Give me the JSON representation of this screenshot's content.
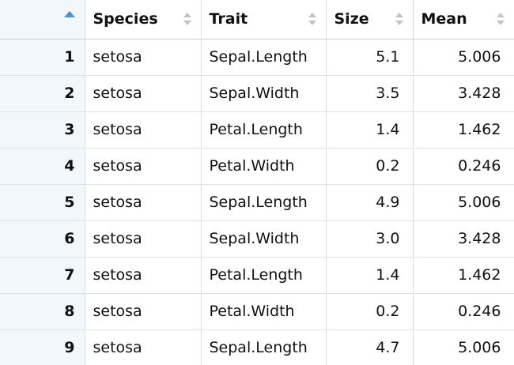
{
  "table": {
    "columns": [
      {
        "key": "index",
        "label": "",
        "sort_icon": "sort-ascending-icon",
        "active_color": "#4a90d9"
      },
      {
        "key": "species",
        "label": "Species",
        "sort_icon": "sort-both-icon"
      },
      {
        "key": "trait",
        "label": "Trait",
        "sort_icon": "sort-both-icon"
      },
      {
        "key": "size",
        "label": "Size",
        "sort_icon": "sort-both-icon"
      },
      {
        "key": "mean",
        "label": "Mean",
        "sort_icon": "sort-both-icon"
      }
    ],
    "rows": [
      {
        "index": "1",
        "species": "setosa",
        "trait": "Sepal.Length",
        "size": "5.1",
        "mean": "5.006"
      },
      {
        "index": "2",
        "species": "setosa",
        "trait": "Sepal.Width",
        "size": "3.5",
        "mean": "3.428"
      },
      {
        "index": "3",
        "species": "setosa",
        "trait": "Petal.Length",
        "size": "1.4",
        "mean": "1.462"
      },
      {
        "index": "4",
        "species": "setosa",
        "trait": "Petal.Width",
        "size": "0.2",
        "mean": "0.246"
      },
      {
        "index": "5",
        "species": "setosa",
        "trait": "Sepal.Length",
        "size": "4.9",
        "mean": "5.006"
      },
      {
        "index": "6",
        "species": "setosa",
        "trait": "Sepal.Width",
        "size": "3.0",
        "mean": "3.428"
      },
      {
        "index": "7",
        "species": "setosa",
        "trait": "Petal.Length",
        "size": "1.4",
        "mean": "1.462"
      },
      {
        "index": "8",
        "species": "setosa",
        "trait": "Petal.Width",
        "size": "0.2",
        "mean": "0.246"
      },
      {
        "index": "9",
        "species": "setosa",
        "trait": "Sepal.Length",
        "size": "4.7",
        "mean": "5.006"
      }
    ]
  }
}
